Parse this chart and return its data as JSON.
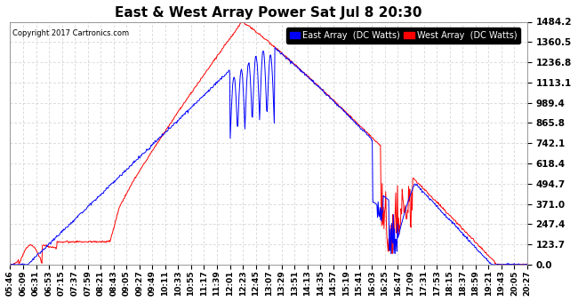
{
  "title": "East & West Array Power Sat Jul 8 20:30",
  "copyright": "Copyright 2017 Cartronics.com",
  "legend_east": "East Array  (DC Watts)",
  "legend_west": "West Array  (DC Watts)",
  "east_color": "#0000FF",
  "west_color": "#FF0000",
  "background_color": "#FFFFFF",
  "grid_color": "#CCCCCC",
  "ylim": [
    0,
    1484.2
  ],
  "yticks": [
    0.0,
    123.7,
    247.4,
    371.0,
    494.7,
    618.4,
    742.1,
    865.8,
    989.4,
    1113.1,
    1236.8,
    1360.5,
    1484.2
  ],
  "x_labels": [
    "05:46",
    "06:09",
    "06:31",
    "06:53",
    "07:15",
    "07:37",
    "07:59",
    "08:21",
    "08:43",
    "09:05",
    "09:27",
    "09:49",
    "10:11",
    "10:33",
    "10:55",
    "11:17",
    "11:39",
    "12:01",
    "12:23",
    "12:45",
    "13:07",
    "13:29",
    "13:51",
    "14:13",
    "14:35",
    "14:57",
    "15:19",
    "15:41",
    "16:03",
    "16:25",
    "16:47",
    "17:09",
    "17:31",
    "17:53",
    "18:15",
    "18:37",
    "18:59",
    "19:21",
    "19:43",
    "20:05",
    "20:27"
  ],
  "title_fontsize": 11,
  "label_fontsize": 6.5,
  "ytick_fontsize": 7.5,
  "legend_fontsize": 7
}
